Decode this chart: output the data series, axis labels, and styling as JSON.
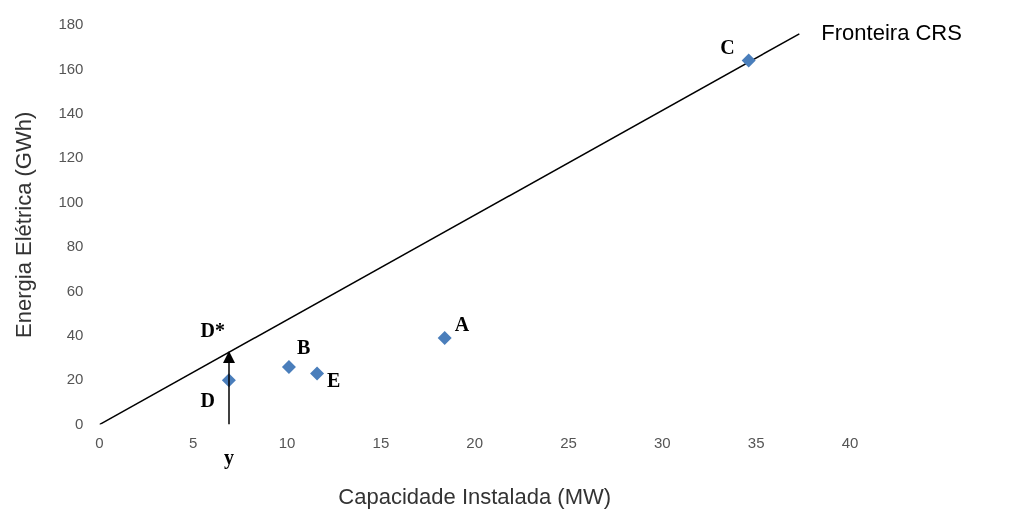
{
  "chart_data": {
    "type": "scatter",
    "xlabel": "Capacidade Instalada (MW)",
    "ylabel": "Energia Elétrica (GWh)",
    "xlim": [
      0,
      40
    ],
    "xticks": [
      0,
      5,
      10,
      15,
      20,
      25,
      30,
      35,
      40
    ],
    "ylim": [
      0,
      180
    ],
    "yticks": [
      0,
      20,
      40,
      60,
      80,
      100,
      120,
      140,
      160,
      180
    ],
    "grid": false,
    "legend": false,
    "marker": "diamond",
    "series": [
      {
        "color": "#4a7ebb",
        "x": [
          18.4,
          10.1,
          34.6,
          6.9,
          11.6
        ],
        "values": [
          39,
          26,
          164,
          20,
          23
        ]
      },
      {
        "type": "line",
        "name": "Fronteira CRS",
        "color": "#000000",
        "marker": "none",
        "x": [
          0,
          37.3
        ],
        "values": [
          0,
          176
        ]
      }
    ],
    "annotations": [
      {
        "text": "A",
        "x": 18.4,
        "y": 39
      },
      {
        "text": "B",
        "x": 10.1,
        "y": 26
      },
      {
        "text": "C",
        "x": 34.6,
        "y": 164
      },
      {
        "text": "D",
        "x": 6.9,
        "y": 20
      },
      {
        "text": "E",
        "x": 11.6,
        "y": 23
      },
      {
        "text": "D*",
        "x": 6.9,
        "y": 33
      },
      "y"
    ]
  }
}
